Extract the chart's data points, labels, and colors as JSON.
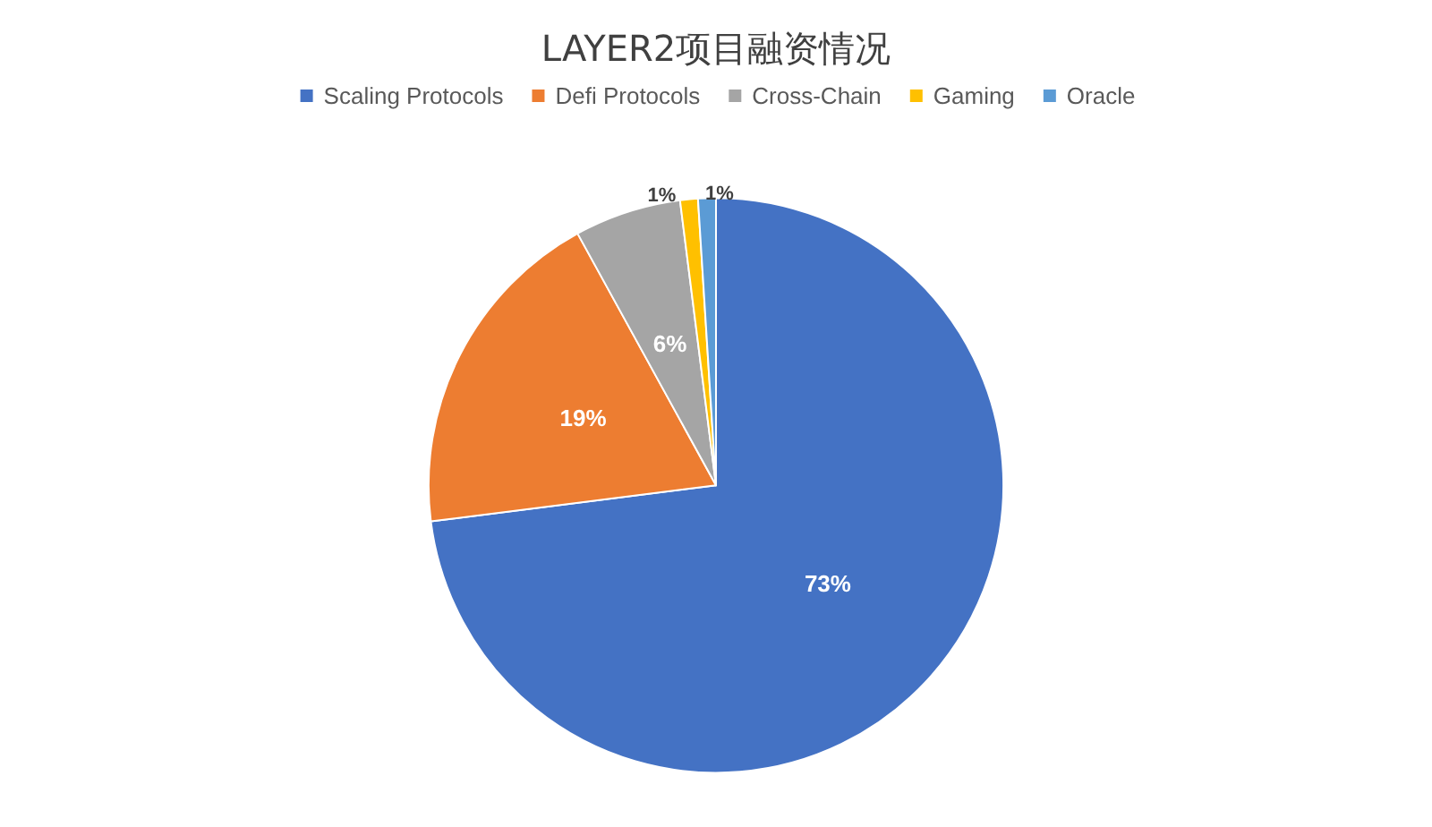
{
  "chart_data": {
    "type": "pie",
    "title": "LAYER2项目融资情况",
    "categories": [
      "Scaling Protocols",
      "Defi Protocols",
      "Cross-Chain",
      "Gaming",
      "Oracle"
    ],
    "values": [
      73,
      19,
      6,
      1,
      1
    ],
    "colors": [
      "#4472c4",
      "#ed7d31",
      "#a5a5a5",
      "#ffc000",
      "#5b9bd5"
    ],
    "value_labels": [
      "73%",
      "19%",
      "6%",
      "1%",
      "1%"
    ],
    "legend": "top"
  }
}
